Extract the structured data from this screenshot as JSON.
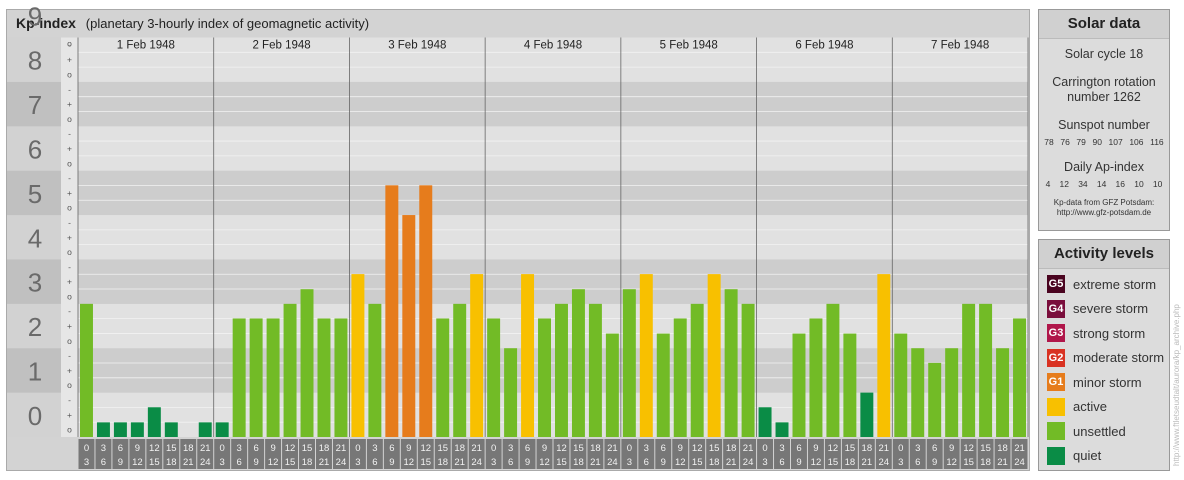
{
  "title": "Kp-index",
  "subtitle": "(planetary 3-hourly index of geomagnetic activity)",
  "chart_data": {
    "type": "bar",
    "days": [
      "1 Feb 1948",
      "2 Feb 1948",
      "3 Feb 1948",
      "4 Feb 1948",
      "5 Feb 1948",
      "6 Feb 1948",
      "7 Feb 1948"
    ],
    "interval_start": [
      "0",
      "3",
      "6",
      "9",
      "12",
      "15",
      "18",
      "21"
    ],
    "interval_end": [
      "3",
      "6",
      "9",
      "12",
      "15",
      "18",
      "21",
      "24"
    ],
    "ylim": [
      0,
      9
    ],
    "y_major_labels": [
      "0",
      "1",
      "2",
      "3",
      "4",
      "5",
      "6",
      "7",
      "8",
      "9"
    ],
    "y_minor_labels": [
      "+",
      "-",
      "o"
    ],
    "values": [
      3.0,
      0.33,
      0.33,
      0.33,
      0.67,
      0.33,
      0.0,
      0.33,
      0.33,
      2.67,
      2.67,
      2.67,
      3.0,
      3.33,
      2.67,
      2.67,
      3.67,
      3.0,
      5.67,
      5.0,
      5.67,
      2.67,
      3.0,
      3.67,
      2.67,
      2.0,
      3.67,
      2.67,
      3.0,
      3.33,
      3.0,
      2.33,
      3.33,
      3.67,
      2.33,
      2.67,
      3.0,
      3.67,
      3.33,
      3.0,
      0.67,
      0.33,
      2.33,
      2.67,
      3.0,
      2.33,
      1.0,
      3.67,
      2.33,
      2.0,
      1.67,
      2.0,
      3.0,
      3.0,
      2.0,
      2.67
    ],
    "level_colors": {
      "quiet": "#0a8c46",
      "unsettled": "#72bb26",
      "active": "#f8c000",
      "minor": "#e67c1c",
      "moderate": "#d93222",
      "strong": "#b0164a",
      "severe": "#7a0e3c",
      "extreme": "#4a0420"
    }
  },
  "solar": {
    "heading": "Solar data",
    "cycle": "Solar cycle 18",
    "carrington_line1": "Carrington rotation",
    "carrington_line2": "number 1262",
    "sunspot_heading": "Sunspot number",
    "sunspot": [
      "78",
      "76",
      "79",
      "90",
      "107",
      "106",
      "116"
    ],
    "ap_heading": "Daily Ap-index",
    "ap": [
      "4",
      "12",
      "34",
      "14",
      "16",
      "10",
      "10"
    ],
    "source_line1": "Kp-data from GFZ Potsdam:",
    "source_line2": "http://www.gfz-potsdam.de"
  },
  "activity": {
    "heading": "Activity levels",
    "levels": [
      {
        "code": "G5",
        "label": "extreme storm",
        "color": "#4a0420"
      },
      {
        "code": "G4",
        "label": "severe storm",
        "color": "#7a0e3c"
      },
      {
        "code": "G3",
        "label": "strong storm",
        "color": "#b0164a"
      },
      {
        "code": "G2",
        "label": "moderate storm",
        "color": "#d93222"
      },
      {
        "code": "G1",
        "label": "minor storm",
        "color": "#e67c1c"
      },
      {
        "code": "",
        "label": "active",
        "color": "#f8c000"
      },
      {
        "code": "",
        "label": "unsettled",
        "color": "#72bb26"
      },
      {
        "code": "",
        "label": "quiet",
        "color": "#0a8c46"
      }
    ]
  },
  "watermark": "http://www.ftletseudtalt/aurora/kp_archive.php"
}
